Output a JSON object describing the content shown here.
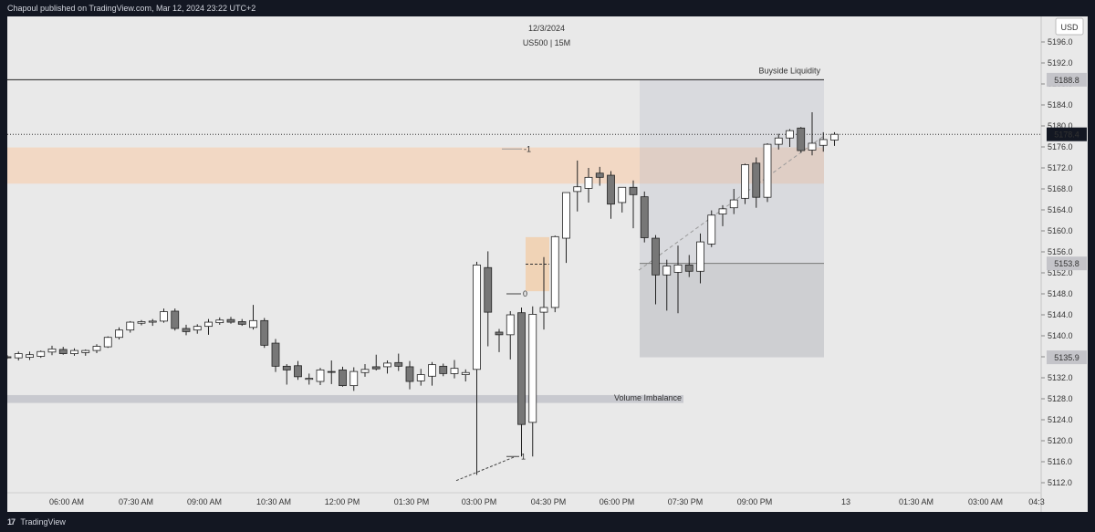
{
  "header": {
    "published_text": "Chapoul published on TradingView.com, Mar 12, 2024 23:22 UTC+2"
  },
  "footer": {
    "brand": "TradingView",
    "logo_glyph": "17"
  },
  "chart_data": {
    "type": "candlestick",
    "date": "12/3/2024",
    "symbol": "US500 | 15M",
    "currency": "USD",
    "ylim": [
      5110,
      5200
    ],
    "y_ticks": [
      "5196.0",
      "5192.0",
      "5188.0",
      "5184.0",
      "5180.0",
      "5176.0",
      "5172.0",
      "5168.0",
      "5164.0",
      "5160.0",
      "5156.0",
      "5152.0",
      "5148.0",
      "5144.0",
      "5140.0",
      "5136.0",
      "5132.0",
      "5128.0",
      "5124.0",
      "5120.0",
      "5116.0",
      "5112.0"
    ],
    "x_ticks": [
      "06:00 AM",
      "07:30 AM",
      "09:00 AM",
      "10:30 AM",
      "12:00 PM",
      "01:30 PM",
      "03:00 PM",
      "04:30 PM",
      "06:00 PM",
      "07:30 PM",
      "09:00 PM",
      "13",
      "01:30 AM",
      "03:00 AM",
      "04:3"
    ],
    "price_tags": [
      {
        "label": "5188.8",
        "value": 5188.8,
        "style": "grey"
      },
      {
        "label": "5178.4",
        "value": 5178.4,
        "style": "dark"
      },
      {
        "label": "5153.8",
        "value": 5153.8,
        "style": "grey"
      },
      {
        "label": "5135.9",
        "value": 5135.9,
        "style": "grey"
      }
    ],
    "annotations": {
      "buyside_label": "Buyside Liquidity",
      "buyside_level": 5188.8,
      "current_price": 5178.4,
      "volume_imbalance_label": "Volume Imbalance",
      "volume_imbalance_range": [
        5127.2,
        5128.7
      ],
      "orange_zone_range": [
        5169.0,
        5175.9
      ],
      "small_fvg_range": [
        5148.5,
        5158.8
      ],
      "fib_labels": [
        "-1",
        "0",
        "1"
      ],
      "fib_levels": [
        5175.6,
        5148.0,
        5117.0
      ],
      "range_box": {
        "top": 5188.8,
        "mid": 5153.8,
        "bottom": 5135.9
      }
    },
    "candles": [
      [
        5136.0,
        5136.3,
        5135.6,
        5135.8
      ],
      [
        5135.8,
        5137.0,
        5135.3,
        5136.6
      ],
      [
        5135.9,
        5137.0,
        5135.4,
        5136.4
      ],
      [
        5136.1,
        5137.2,
        5135.8,
        5137.0
      ],
      [
        5136.9,
        5138.1,
        5136.3,
        5137.5
      ],
      [
        5137.4,
        5137.9,
        5136.4,
        5136.6
      ],
      [
        5136.6,
        5137.6,
        5136.2,
        5137.2
      ],
      [
        5136.8,
        5137.4,
        5136.2,
        5137.2
      ],
      [
        5137.2,
        5138.4,
        5136.7,
        5138.0
      ],
      [
        5137.9,
        5139.9,
        5137.7,
        5139.7
      ],
      [
        5139.7,
        5141.6,
        5139.3,
        5141.1
      ],
      [
        5141.1,
        5142.8,
        5140.6,
        5142.6
      ],
      [
        5142.4,
        5143.0,
        5142.0,
        5142.7
      ],
      [
        5142.6,
        5143.2,
        5141.9,
        5142.8
      ],
      [
        5142.8,
        5145.2,
        5142.5,
        5144.6
      ],
      [
        5144.7,
        5145.2,
        5141.0,
        5141.4
      ],
      [
        5141.4,
        5142.1,
        5140.1,
        5140.8
      ],
      [
        5141.1,
        5142.2,
        5140.4,
        5141.8
      ],
      [
        5141.8,
        5143.2,
        5140.2,
        5142.6
      ],
      [
        5142.5,
        5143.5,
        5142.1,
        5143.0
      ],
      [
        5143.1,
        5143.6,
        5142.3,
        5142.6
      ],
      [
        5142.7,
        5143.2,
        5141.9,
        5142.2
      ],
      [
        5141.6,
        5145.9,
        5141.2,
        5142.9
      ],
      [
        5142.9,
        5143.4,
        5137.7,
        5138.2
      ],
      [
        5138.6,
        5139.4,
        5133.1,
        5134.2
      ],
      [
        5134.2,
        5134.6,
        5130.7,
        5133.5
      ],
      [
        5134.3,
        5135.2,
        5131.6,
        5132.2
      ],
      [
        5131.7,
        5132.8,
        5130.7,
        5131.9
      ],
      [
        5131.3,
        5133.9,
        5130.6,
        5133.5
      ],
      [
        5133.2,
        5135.3,
        5130.8,
        5133.1
      ],
      [
        5133.5,
        5134.1,
        5130.3,
        5130.5
      ],
      [
        5130.5,
        5134.0,
        5129.5,
        5133.2
      ],
      [
        5133.0,
        5134.6,
        5132.2,
        5133.6
      ],
      [
        5134.1,
        5136.4,
        5133.4,
        5133.7
      ],
      [
        5134.1,
        5135.3,
        5132.8,
        5134.8
      ],
      [
        5134.9,
        5136.6,
        5133.3,
        5134.2
      ],
      [
        5134.1,
        5135.2,
        5129.8,
        5131.3
      ],
      [
        5131.4,
        5133.7,
        5130.5,
        5132.6
      ],
      [
        5132.3,
        5135.0,
        5130.5,
        5134.5
      ],
      [
        5134.2,
        5134.7,
        5132.3,
        5132.8
      ],
      [
        5132.8,
        5135.4,
        5131.9,
        5133.8
      ],
      [
        5132.6,
        5133.6,
        5131.3,
        5133.0
      ],
      [
        5133.6,
        5154.1,
        5113.5,
        5153.5
      ],
      [
        5153.0,
        5156.1,
        5138.0,
        5144.5
      ],
      [
        5140.7,
        5141.3,
        5136.9,
        5140.2
      ],
      [
        5140.2,
        5144.7,
        5135.5,
        5144.0
      ],
      [
        5144.4,
        5145.4,
        5117.0,
        5123.1
      ],
      [
        5123.5,
        5145.6,
        5117.0,
        5144.1
      ],
      [
        5144.5,
        5155.0,
        5141.2,
        5145.4
      ],
      [
        5145.4,
        5159.1,
        5144.5,
        5158.9
      ],
      [
        5158.6,
        5167.3,
        5153.9,
        5167.3
      ],
      [
        5167.5,
        5173.4,
        5163.7,
        5168.4
      ],
      [
        5168.1,
        5172.0,
        5165.4,
        5170.2
      ],
      [
        5171.0,
        5172.2,
        5168.6,
        5170.2
      ],
      [
        5170.6,
        5171.4,
        5162.3,
        5165.1
      ],
      [
        5165.4,
        5168.0,
        5163.5,
        5168.3
      ],
      [
        5168.3,
        5169.6,
        5160.5,
        5166.9
      ],
      [
        5166.5,
        5167.5,
        5157.8,
        5158.7
      ],
      [
        5158.6,
        5159.2,
        5146.0,
        5151.6
      ],
      [
        5151.6,
        5154.5,
        5144.8,
        5153.3
      ],
      [
        5152.1,
        5157.2,
        5144.3,
        5153.5
      ],
      [
        5153.5,
        5155.4,
        5151.2,
        5152.3
      ],
      [
        5152.3,
        5159.5,
        5150.0,
        5157.9
      ],
      [
        5157.5,
        5163.9,
        5156.9,
        5163.0
      ],
      [
        5163.2,
        5164.9,
        5160.9,
        5164.2
      ],
      [
        5164.4,
        5168.0,
        5163.2,
        5165.9
      ],
      [
        5166.2,
        5172.8,
        5165.1,
        5172.6
      ],
      [
        5172.9,
        5174.0,
        5164.4,
        5166.4
      ],
      [
        5166.4,
        5176.7,
        5165.5,
        5176.5
      ],
      [
        5176.5,
        5178.5,
        5175.5,
        5177.7
      ],
      [
        5177.7,
        5179.4,
        5176.0,
        5179.1
      ],
      [
        5179.6,
        5179.8,
        5174.9,
        5175.3
      ],
      [
        5175.4,
        5182.6,
        5174.4,
        5176.7
      ],
      [
        5176.3,
        5178.8,
        5175.1,
        5177.4
      ],
      [
        5177.3,
        5178.8,
        5176.2,
        5178.4
      ]
    ]
  }
}
